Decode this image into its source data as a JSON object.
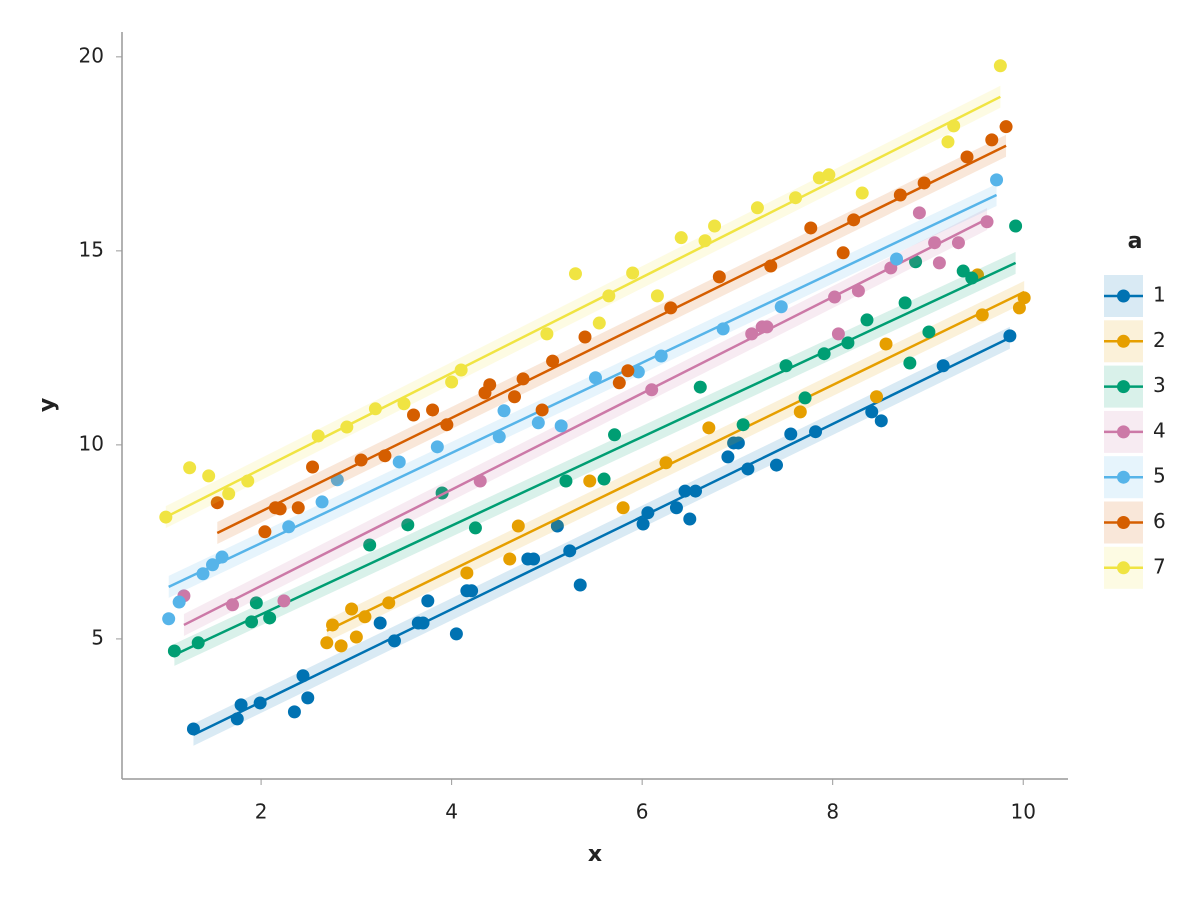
{
  "chart_data": {
    "type": "scatter",
    "xlabel": "x",
    "ylabel": "y",
    "legend_title": "a",
    "legend_position": "right",
    "xlim": [
      0.54,
      10.47
    ],
    "ylim": [
      1.39,
      20.64
    ],
    "xticks": [
      2,
      4,
      6,
      8,
      10
    ],
    "yticks": [
      5,
      10,
      15,
      20
    ],
    "grid": false,
    "series": [
      {
        "name": "1",
        "color": "#0072b2",
        "x": [
          1.29,
          1.75,
          1.79,
          1.99,
          2.35,
          2.44,
          2.49,
          3.25,
          3.4,
          3.65,
          3.7,
          3.75,
          4.05,
          4.16,
          4.21,
          4.8,
          4.86,
          5.11,
          5.24,
          5.35,
          6.01,
          6.06,
          6.36,
          6.45,
          6.5,
          6.56,
          6.9,
          6.96,
          7.01,
          7.11,
          7.41,
          7.56,
          7.82,
          8.41,
          8.51,
          9.16,
          9.86
        ],
        "values": [
          2.68,
          2.94,
          3.3,
          3.35,
          3.12,
          4.05,
          3.48,
          5.41,
          4.95,
          5.41,
          5.41,
          5.98,
          5.13,
          6.24,
          6.24,
          7.06,
          7.06,
          7.91,
          7.27,
          6.39,
          7.96,
          8.25,
          8.38,
          8.81,
          8.09,
          8.81,
          9.69,
          10.05,
          10.05,
          9.38,
          9.48,
          10.28,
          10.34,
          10.85,
          10.62,
          12.04,
          12.81
        ],
        "trend": {
          "x": [
            1.29,
            9.86
          ],
          "values": [
            2.53,
            12.76
          ]
        }
      },
      {
        "name": "2",
        "color": "#e69f00",
        "x": [
          2.69,
          2.75,
          2.84,
          2.95,
          3.0,
          3.09,
          3.34,
          4.16,
          4.61,
          4.7,
          5.45,
          5.8,
          6.25,
          6.7,
          7.66,
          8.46,
          8.56,
          9.52,
          9.57,
          9.96,
          10.01
        ],
        "values": [
          4.9,
          5.36,
          4.82,
          5.77,
          5.05,
          5.57,
          5.93,
          6.7,
          7.06,
          7.91,
          9.07,
          8.38,
          9.54,
          10.44,
          10.85,
          11.24,
          12.6,
          14.38,
          13.35,
          13.53,
          13.79
        ],
        "trend": {
          "x": [
            2.69,
            10.01
          ],
          "values": [
            5.21,
            13.94
          ]
        }
      },
      {
        "name": "3",
        "color": "#009e73",
        "x": [
          1.09,
          1.34,
          1.9,
          1.95,
          2.09,
          3.14,
          3.54,
          3.9,
          4.25,
          5.2,
          5.6,
          5.71,
          6.61,
          7.06,
          7.51,
          7.71,
          7.91,
          8.16,
          8.36,
          8.76,
          8.81,
          8.87,
          9.01,
          9.37,
          9.46,
          9.92
        ],
        "values": [
          4.69,
          4.9,
          5.44,
          5.93,
          5.54,
          7.42,
          7.94,
          8.76,
          7.86,
          9.07,
          9.12,
          10.26,
          11.49,
          10.52,
          12.04,
          11.21,
          12.35,
          12.63,
          13.22,
          13.66,
          12.11,
          14.72,
          12.91,
          14.48,
          14.3,
          15.64
        ],
        "trend": {
          "x": [
            1.09,
            9.92
          ],
          "values": [
            4.59,
            14.69
          ]
        }
      },
      {
        "name": "4",
        "color": "#cc79a7",
        "x": [
          1.19,
          1.7,
          2.24,
          4.3,
          6.1,
          7.15,
          7.26,
          7.31,
          8.02,
          8.06,
          8.27,
          8.61,
          8.91,
          9.07,
          9.12,
          9.32,
          9.62
        ],
        "values": [
          6.11,
          5.88,
          5.98,
          9.07,
          11.42,
          12.86,
          13.04,
          13.04,
          13.81,
          12.86,
          13.97,
          14.56,
          15.98,
          15.21,
          14.69,
          15.21,
          15.75
        ],
        "trend": {
          "x": [
            1.19,
            9.62
          ],
          "values": [
            5.36,
            15.82
          ]
        }
      },
      {
        "name": "5",
        "color": "#56b4e9",
        "x": [
          1.03,
          1.14,
          1.39,
          1.49,
          1.59,
          2.29,
          2.64,
          2.8,
          3.45,
          3.85,
          4.5,
          4.55,
          4.91,
          5.15,
          5.51,
          5.96,
          6.2,
          6.85,
          7.46,
          8.67,
          9.72
        ],
        "values": [
          5.52,
          5.95,
          6.68,
          6.91,
          7.11,
          7.89,
          8.53,
          9.1,
          9.56,
          9.95,
          10.21,
          10.88,
          10.57,
          10.49,
          11.73,
          11.88,
          12.29,
          12.99,
          13.56,
          14.79,
          16.83
        ],
        "trend": {
          "x": [
            1.03,
            9.72
          ],
          "values": [
            6.34,
            16.44
          ]
        }
      },
      {
        "name": "6",
        "color": "#d55e00",
        "x": [
          1.54,
          2.04,
          2.15,
          2.2,
          2.39,
          2.54,
          3.05,
          3.3,
          3.6,
          3.8,
          3.95,
          4.35,
          4.4,
          4.66,
          4.75,
          4.95,
          5.06,
          5.4,
          5.76,
          5.85,
          6.3,
          6.81,
          7.35,
          7.77,
          8.11,
          8.22,
          8.71,
          8.96,
          9.41,
          9.67,
          9.82
        ],
        "values": [
          8.51,
          7.76,
          8.38,
          8.35,
          8.38,
          9.43,
          9.61,
          9.72,
          10.77,
          10.9,
          10.52,
          11.34,
          11.55,
          11.24,
          11.7,
          10.9,
          12.16,
          12.78,
          11.6,
          11.91,
          13.53,
          14.33,
          14.61,
          15.59,
          14.95,
          15.8,
          16.44,
          16.75,
          17.42,
          17.86,
          18.2
        ],
        "trend": {
          "x": [
            1.54,
            9.82
          ],
          "values": [
            7.73,
            17.71
          ]
        }
      },
      {
        "name": "7",
        "color": "#f0e442",
        "x": [
          1.0,
          1.25,
          1.45,
          1.66,
          1.86,
          2.6,
          2.9,
          3.2,
          3.5,
          4.0,
          4.1,
          5.0,
          5.3,
          5.55,
          5.65,
          5.9,
          6.16,
          6.41,
          6.66,
          6.76,
          7.21,
          7.61,
          7.86,
          7.96,
          8.31,
          9.21,
          9.27,
          9.76
        ],
        "values": [
          8.14,
          9.41,
          9.2,
          8.74,
          9.07,
          10.23,
          10.46,
          10.93,
          11.06,
          11.62,
          11.93,
          12.86,
          14.41,
          13.14,
          13.84,
          14.43,
          13.84,
          15.34,
          15.26,
          15.64,
          16.11,
          16.37,
          16.88,
          16.96,
          16.49,
          17.81,
          18.22,
          19.77
        ],
        "trend": {
          "x": [
            1.0,
            9.76
          ],
          "values": [
            8.14,
            18.97
          ]
        }
      }
    ]
  }
}
